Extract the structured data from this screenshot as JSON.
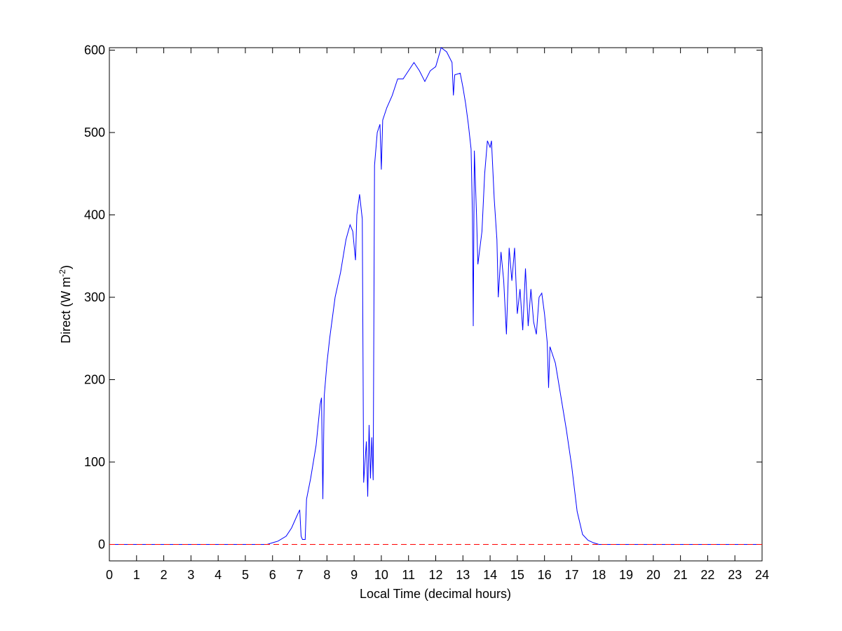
{
  "chart_data": {
    "type": "line",
    "x_label": "Local Time (decimal hours)",
    "y_label": {
      "text": "Direct (W m",
      "superscript": "-2",
      "suffix": ")"
    },
    "xlim": [
      0,
      24
    ],
    "xticks": [
      0,
      1,
      2,
      3,
      4,
      5,
      6,
      7,
      8,
      9,
      10,
      11,
      12,
      13,
      14,
      15,
      16,
      17,
      18,
      19,
      20,
      21,
      22,
      23,
      24
    ],
    "ylim": [
      -20,
      603
    ],
    "yticks": [
      0,
      100,
      200,
      300,
      400,
      500,
      600
    ],
    "reference_line": {
      "value": 0,
      "color": "#ff0000",
      "dashed": true
    },
    "series": [
      {
        "color": "#0000ff",
        "x": [
          0,
          5.8,
          6.0,
          6.2,
          6.5,
          6.7,
          6.9,
          7.0,
          7.05,
          7.1,
          7.2,
          7.25,
          7.4,
          7.6,
          7.75,
          7.8,
          7.85,
          7.9,
          8.0,
          8.1,
          8.3,
          8.5,
          8.7,
          8.85,
          8.95,
          9.05,
          9.1,
          9.2,
          9.3,
          9.35,
          9.45,
          9.5,
          9.55,
          9.6,
          9.65,
          9.7,
          9.75,
          9.85,
          9.95,
          10.0,
          10.05,
          10.2,
          10.4,
          10.6,
          10.8,
          11.0,
          11.2,
          11.4,
          11.6,
          11.8,
          12.0,
          12.2,
          12.4,
          12.6,
          12.65,
          12.7,
          12.9,
          13.0,
          13.1,
          13.2,
          13.3,
          13.35,
          13.38,
          13.42,
          13.5,
          13.55,
          13.7,
          13.8,
          13.9,
          14.0,
          14.05,
          14.15,
          14.25,
          14.3,
          14.4,
          14.5,
          14.6,
          14.7,
          14.8,
          14.9,
          15.0,
          15.1,
          15.2,
          15.3,
          15.4,
          15.5,
          15.6,
          15.7,
          15.8,
          15.9,
          16.0,
          16.1,
          16.15,
          16.2,
          16.4,
          16.6,
          16.8,
          17.0,
          17.2,
          17.4,
          17.6,
          17.8,
          18.0,
          24
        ],
        "values": [
          0,
          0,
          2,
          4,
          10,
          20,
          35,
          42,
          10,
          6,
          6,
          55,
          80,
          120,
          170,
          178,
          55,
          180,
          220,
          250,
          300,
          330,
          370,
          388,
          380,
          345,
          400,
          425,
          395,
          75,
          125,
          58,
          145,
          80,
          130,
          78,
          460,
          500,
          510,
          455,
          515,
          530,
          545,
          565,
          565,
          575,
          585,
          575,
          562,
          575,
          580,
          603,
          598,
          585,
          545,
          570,
          572,
          555,
          535,
          510,
          480,
          400,
          265,
          478,
          400,
          340,
          380,
          450,
          490,
          482,
          490,
          420,
          370,
          300,
          355,
          320,
          255,
          360,
          320,
          360,
          280,
          310,
          260,
          335,
          265,
          310,
          270,
          255,
          300,
          305,
          280,
          245,
          190,
          240,
          220,
          180,
          140,
          95,
          40,
          12,
          5,
          2,
          0,
          0
        ]
      }
    ]
  }
}
